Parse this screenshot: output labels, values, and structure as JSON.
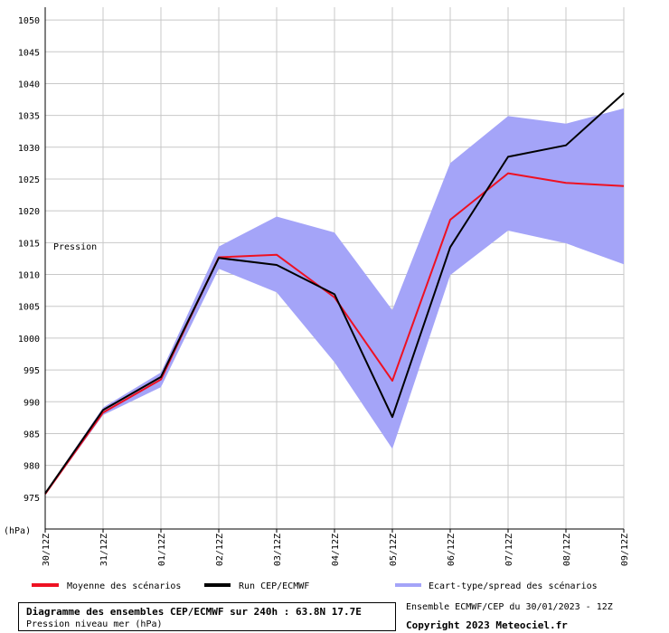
{
  "chart_data": {
    "type": "line",
    "title": "Diagramme des ensembles CEP/ECMWF sur 240h : 63.8N 17.7E",
    "subtitle": "Pression niveau mer (hPa)",
    "ylabel": "(hPa)",
    "panel_label": "Pression",
    "x": [
      "30/12Z",
      "31/12Z",
      "01/12Z",
      "02/12Z",
      "03/12Z",
      "04/12Z",
      "05/12Z",
      "06/12Z",
      "07/12Z",
      "08/12Z",
      "09/12Z"
    ],
    "ylim": [
      970,
      1052
    ],
    "yticks": [
      975,
      980,
      985,
      990,
      995,
      1000,
      1005,
      1010,
      1015,
      1020,
      1025,
      1030,
      1035,
      1040,
      1045,
      1050
    ],
    "grid": true,
    "series": [
      {
        "name": "Moyenne des scénarios",
        "kind": "line",
        "color": "#ee1122",
        "values": [
          975.5,
          988.3,
          993.5,
          1012.7,
          1013.1,
          1006.4,
          993.3,
          1018.6,
          1025.9,
          1024.4,
          1023.9
        ]
      },
      {
        "name": "Run CEP/ECMWF",
        "kind": "line",
        "color": "#000000",
        "values": [
          975.6,
          988.7,
          993.9,
          1012.6,
          1011.5,
          1006.9,
          987.6,
          1014.3,
          1028.5,
          1030.3,
          1038.5
        ]
      },
      {
        "name": "Ecart-type/spread des scénarios",
        "kind": "band",
        "color": "#a4a4f8",
        "upper": [
          975.8,
          989.1,
          994.6,
          1014.4,
          1019.1,
          1016.6,
          1004.4,
          1027.5,
          1034.9,
          1033.7,
          1036.1
        ],
        "lower": [
          975.3,
          987.9,
          992.3,
          1010.9,
          1007.2,
          996.2,
          982.6,
          1009.9,
          1016.9,
          1014.9,
          1011.6
        ]
      }
    ]
  },
  "footer": {
    "run_info": "Ensemble ECMWF/CEP du 30/01/2023 - 12Z",
    "copyright": "Copyright 2023 Meteociel.fr"
  }
}
